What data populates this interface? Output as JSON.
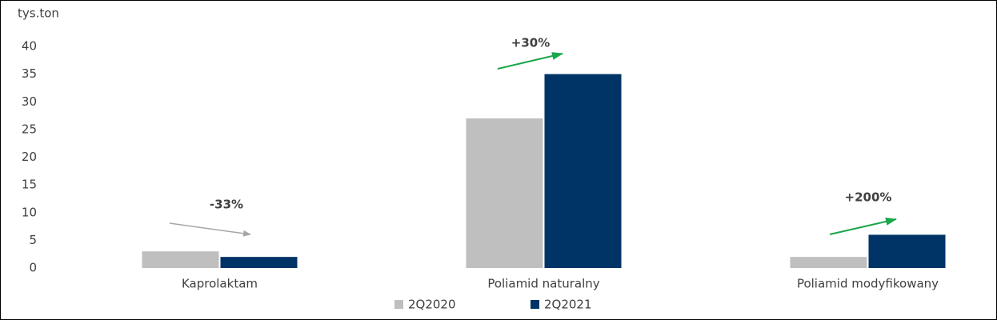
{
  "chart_data": {
    "type": "bar",
    "y_label": "tys.ton",
    "categories": [
      "Kaprolaktam",
      "Poliamid naturalny",
      "Poliamid modyfikowany"
    ],
    "series": [
      {
        "name": "2Q2020",
        "color": "#bfbfbf",
        "values": [
          3,
          27,
          2
        ]
      },
      {
        "name": "2Q2021",
        "color": "#003366",
        "values": [
          2,
          35,
          6
        ]
      }
    ],
    "ylim": [
      0,
      40
    ],
    "yticks": [
      0,
      5,
      10,
      15,
      20,
      25,
      30,
      35,
      40
    ],
    "grid": false,
    "legend": "bottom",
    "annotations": [
      {
        "text": "-33%",
        "color": "#a6a6a6"
      },
      {
        "text": "+30%",
        "color": "#1aa64a"
      },
      {
        "text": "+200%",
        "color": "#1aa64a"
      }
    ]
  }
}
